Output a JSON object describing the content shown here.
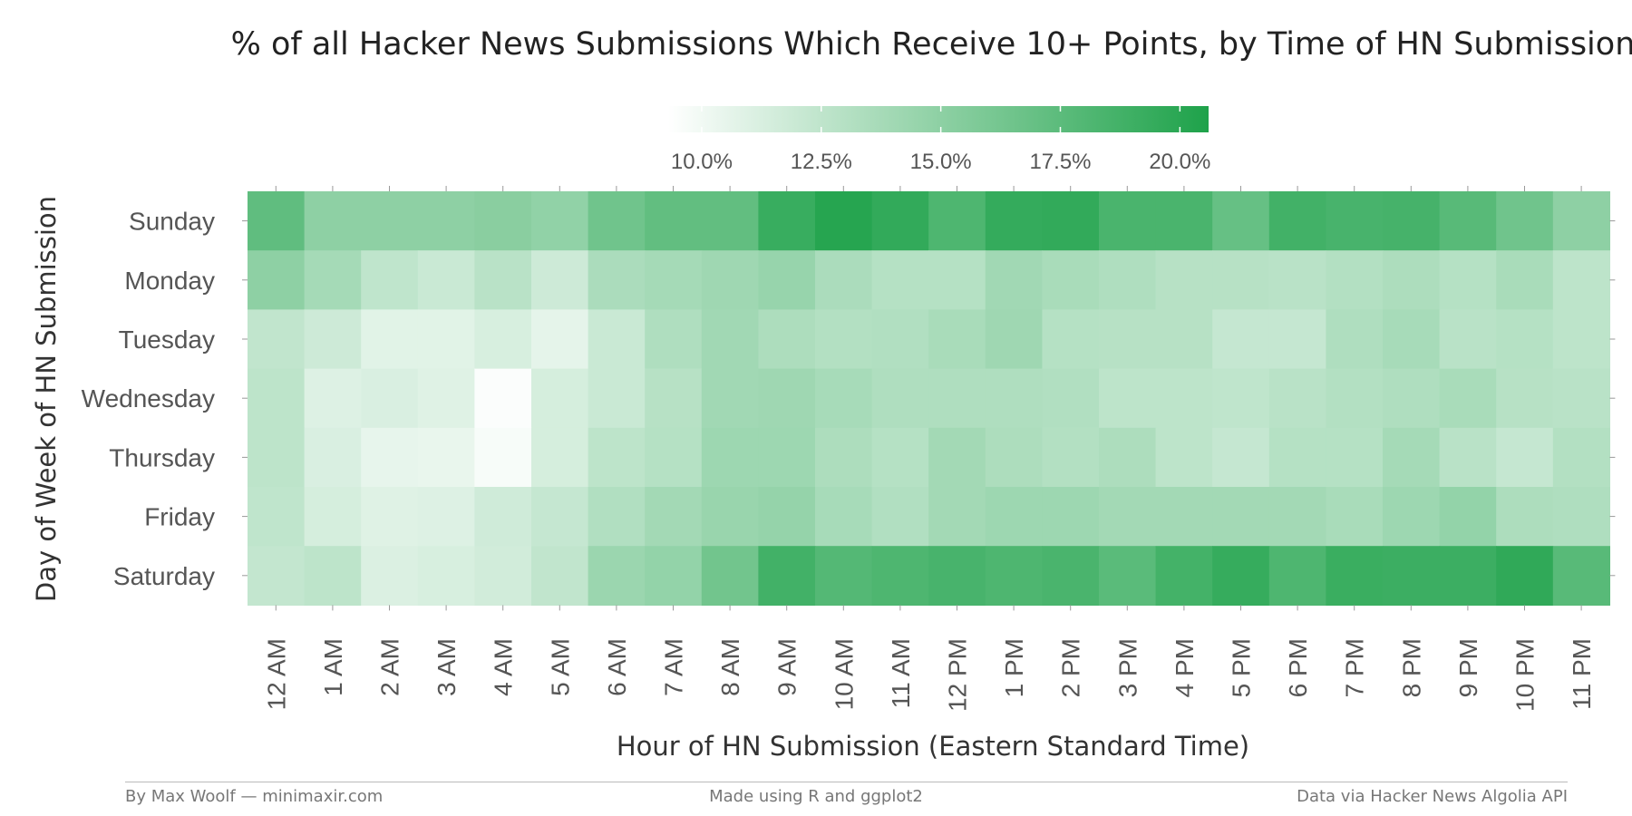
{
  "chart_data": {
    "type": "heatmap",
    "title": "% of all Hacker News Submissions Which Receive 10+ Points, by Time of HN Submission",
    "xlabel": "Hour of HN Submission (Eastern Standard Time)",
    "ylabel": "Day of Week of HN Submission",
    "x": [
      "12 AM",
      "1 AM",
      "2 AM",
      "3 AM",
      "4 AM",
      "5 AM",
      "6 AM",
      "7 AM",
      "8 AM",
      "9 AM",
      "10 AM",
      "11 AM",
      "12 PM",
      "1 PM",
      "2 PM",
      "3 PM",
      "4 PM",
      "5 PM",
      "6 PM",
      "7 PM",
      "8 PM",
      "9 PM",
      "10 PM",
      "11 PM"
    ],
    "y": [
      "Sunday",
      "Monday",
      "Tuesday",
      "Wednesday",
      "Thursday",
      "Friday",
      "Saturday"
    ],
    "values": [
      [
        17.3,
        15.0,
        15.0,
        15.0,
        15.2,
        14.8,
        16.5,
        17.2,
        17.2,
        19.3,
        20.2,
        19.6,
        18.2,
        19.5,
        19.6,
        18.4,
        18.4,
        17.0,
        18.8,
        18.5,
        18.6,
        17.7,
        16.5,
        15.0
      ],
      [
        15.0,
        13.8,
        12.5,
        12.0,
        12.8,
        11.8,
        13.5,
        13.8,
        14.1,
        14.5,
        13.5,
        13.0,
        13.0,
        14.0,
        13.6,
        13.3,
        12.9,
        12.9,
        12.8,
        13.1,
        13.4,
        13.0,
        13.6,
        12.6
      ],
      [
        12.4,
        11.8,
        10.8,
        10.8,
        11.3,
        10.6,
        12.0,
        13.3,
        14.0,
        13.4,
        13.1,
        13.2,
        13.6,
        14.1,
        13.0,
        12.9,
        12.9,
        12.2,
        12.2,
        13.3,
        13.7,
        12.8,
        13.0,
        12.6
      ],
      [
        12.6,
        11.0,
        11.2,
        10.9,
        9.5,
        11.4,
        12.0,
        12.9,
        14.0,
        14.1,
        13.7,
        13.3,
        13.3,
        13.3,
        13.2,
        12.6,
        12.6,
        12.5,
        12.8,
        13.1,
        13.3,
        13.6,
        12.9,
        12.8
      ],
      [
        12.6,
        11.2,
        10.5,
        10.4,
        9.7,
        11.4,
        12.6,
        13.0,
        14.2,
        14.2,
        13.4,
        13.0,
        13.9,
        13.4,
        13.1,
        13.4,
        12.6,
        12.2,
        13.0,
        13.0,
        13.8,
        12.8,
        12.2,
        13.1
      ],
      [
        12.5,
        11.4,
        10.9,
        11.0,
        11.7,
        12.2,
        13.2,
        13.9,
        14.4,
        14.6,
        13.7,
        13.2,
        13.9,
        14.2,
        14.2,
        13.9,
        13.9,
        13.9,
        13.9,
        13.6,
        14.2,
        14.7,
        13.4,
        13.3
      ],
      [
        12.3,
        12.6,
        11.1,
        11.3,
        11.6,
        12.4,
        14.3,
        14.7,
        16.4,
        18.8,
        17.9,
        18.2,
        18.5,
        18.2,
        18.4,
        17.6,
        18.7,
        19.4,
        18.2,
        19.2,
        19.1,
        19.1,
        19.7,
        17.7
      ]
    ],
    "colorbar": {
      "ticks": [
        "10.0%",
        "12.5%",
        "15.0%",
        "17.5%",
        "20.0%"
      ],
      "tick_values": [
        10.0,
        12.5,
        15.0,
        17.5,
        20.0
      ],
      "range": [
        9.3,
        20.6
      ]
    },
    "colors": {
      "low": "#ffffff",
      "high": "#1ea24a"
    }
  },
  "footer": {
    "left": "By Max Woolf — minimaxir.com",
    "center": "Made using R and ggplot2",
    "right": "Data via Hacker News Algolia API"
  }
}
